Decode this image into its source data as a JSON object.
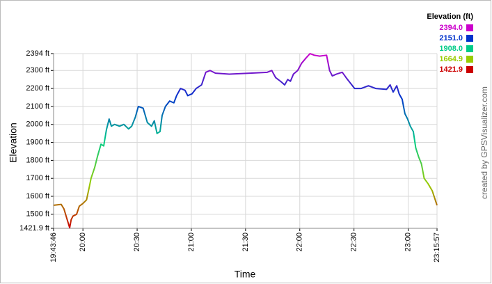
{
  "chart_data": {
    "type": "line",
    "x_label": "Time",
    "y_label": "Elevation",
    "credit": "created by GPSVisualizer.com",
    "x": [
      "19:43:46",
      "19:48:00",
      "19:49:30",
      "19:51:00",
      "19:52:40",
      "19:53:30",
      "19:54:30",
      "19:56:30",
      "19:58:00",
      "20:00:00",
      "20:02:00",
      "20:03:30",
      "20:04:30",
      "20:06:30",
      "20:08:00",
      "20:10:00",
      "20:11:30",
      "20:13:00",
      "20:14:30",
      "20:15:45",
      "20:17:30",
      "20:20:15",
      "20:22:40",
      "20:25:15",
      "20:27:00",
      "20:29:00",
      "20:30:40",
      "20:33:20",
      "20:35:40",
      "20:38:00",
      "20:39:30",
      "20:41:00",
      "20:42:40",
      "20:43:50",
      "20:45:40",
      "20:48:00",
      "20:50:20",
      "20:51:50",
      "20:54:00",
      "20:56:30",
      "20:58:00",
      "21:00:20",
      "21:02:40",
      "21:05:40",
      "21:08:00",
      "21:10:20",
      "21:13:20",
      "21:21:00",
      "21:32:30",
      "21:42:00",
      "21:44:30",
      "21:46:40",
      "21:49:20",
      "21:51:40",
      "21:53:20",
      "21:54:50",
      "21:56:30",
      "21:58:50",
      "22:01:00",
      "22:03:30",
      "22:05:40",
      "22:08:00",
      "22:11:00",
      "22:14:50",
      "22:16:30",
      "22:18:00",
      "22:20:20",
      "22:23:30",
      "22:25:40",
      "22:28:00",
      "22:30:20",
      "22:34:00",
      "22:38:00",
      "22:42:00",
      "22:48:00",
      "22:50:00",
      "22:51:40",
      "22:53:40",
      "22:55:00",
      "22:56:40",
      "22:58:10",
      "22:59:40",
      "23:01:10",
      "23:02:50",
      "23:04:10",
      "23:05:45",
      "23:07:20",
      "23:08:50",
      "23:11:00",
      "23:13:20",
      "23:15:57"
    ],
    "values": [
      1550,
      1555,
      1530,
      1480,
      1425,
      1470,
      1490,
      1500,
      1545,
      1560,
      1580,
      1650,
      1700,
      1760,
      1820,
      1890,
      1880,
      1970,
      2030,
      1990,
      2000,
      1990,
      2000,
      1975,
      1990,
      2040,
      2100,
      2090,
      2010,
      1990,
      2020,
      1950,
      1960,
      2050,
      2100,
      2130,
      2120,
      2160,
      2200,
      2190,
      2160,
      2170,
      2200,
      2220,
      2290,
      2300,
      2285,
      2280,
      2285,
      2290,
      2300,
      2260,
      2240,
      2220,
      2250,
      2240,
      2280,
      2300,
      2340,
      2370,
      2394,
      2385,
      2380,
      2385,
      2300,
      2270,
      2280,
      2290,
      2260,
      2230,
      2200,
      2200,
      2215,
      2200,
      2195,
      2220,
      2180,
      2215,
      2170,
      2140,
      2060,
      2030,
      1990,
      1960,
      1870,
      1820,
      1780,
      1700,
      1670,
      1630,
      1550
    ],
    "xlim": [
      "19:43:46",
      "23:15:57"
    ],
    "xticks": [
      "19:43:46",
      "20:00",
      "20:30",
      "21:00",
      "21:30",
      "22:00",
      "22:30",
      "23:00",
      "23:15:57"
    ],
    "ylim": [
      1421.9,
      2394
    ],
    "yticks": [
      {
        "value": 1421.9,
        "label": "1421.9 ft"
      },
      {
        "value": 1500,
        "label": "1500 ft"
      },
      {
        "value": 1600,
        "label": "1600 ft"
      },
      {
        "value": 1700,
        "label": "1700 ft"
      },
      {
        "value": 1800,
        "label": "1800 ft"
      },
      {
        "value": 1900,
        "label": "1900 ft"
      },
      {
        "value": 2000,
        "label": "2000 ft"
      },
      {
        "value": 2100,
        "label": "2100 ft"
      },
      {
        "value": 2200,
        "label": "2200 ft"
      },
      {
        "value": 2300,
        "label": "2300 ft"
      },
      {
        "value": 2394,
        "label": "2394 ft"
      }
    ],
    "grid": true,
    "color_scale": {
      "title": "Elevation (ft)",
      "stops": [
        {
          "value": 2394,
          "label": "2394.0",
          "color": "#cc00cc"
        },
        {
          "value": 2151,
          "label": "2151.0",
          "color": "#0033cc"
        },
        {
          "value": 1908,
          "label": "1908.0",
          "color": "#00cc88"
        },
        {
          "value": 1664.9,
          "label": "1664.9",
          "color": "#99cc00"
        },
        {
          "value": 1421.9,
          "label": "1421.9",
          "color": "#cc0000"
        }
      ]
    }
  }
}
